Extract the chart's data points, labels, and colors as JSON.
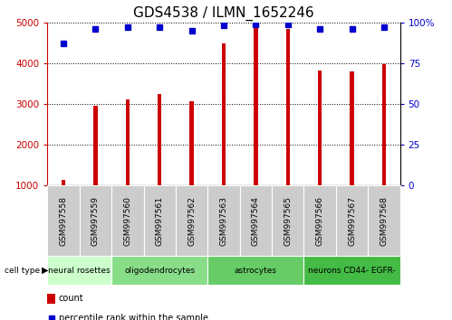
{
  "title": "GDS4538 / ILMN_1652246",
  "samples": [
    "GSM997558",
    "GSM997559",
    "GSM997560",
    "GSM997561",
    "GSM997562",
    "GSM997563",
    "GSM997564",
    "GSM997565",
    "GSM997566",
    "GSM997567",
    "GSM997568"
  ],
  "counts": [
    1150,
    2950,
    3120,
    3250,
    3060,
    4490,
    4980,
    4830,
    3820,
    3790,
    3980
  ],
  "percentiles": [
    87,
    96,
    97,
    97,
    95,
    98,
    99,
    99,
    96,
    96,
    97
  ],
  "cell_types": [
    {
      "label": "neural rosettes",
      "start": 0,
      "end": 2,
      "color": "#ccffcc"
    },
    {
      "label": "oligodendrocytes",
      "start": 2,
      "end": 5,
      "color": "#88dd88"
    },
    {
      "label": "astrocytes",
      "start": 5,
      "end": 8,
      "color": "#66cc66"
    },
    {
      "label": "neurons CD44- EGFR-",
      "start": 8,
      "end": 11,
      "color": "#44bb44"
    }
  ],
  "ylim_left": [
    1000,
    5000
  ],
  "ylim_right": [
    0,
    100
  ],
  "yticks_left": [
    1000,
    2000,
    3000,
    4000,
    5000
  ],
  "yticks_right": [
    0,
    25,
    50,
    75,
    100
  ],
  "bar_color": "#cc0000",
  "dot_color": "#0000cc",
  "bar_width": 0.12,
  "bg_color": "#ffffff",
  "sample_bg_color": "#cccccc",
  "title_fontsize": 11,
  "tick_fontsize": 7.5,
  "sample_fontsize": 6.5,
  "ct_fontsize": 6.5
}
